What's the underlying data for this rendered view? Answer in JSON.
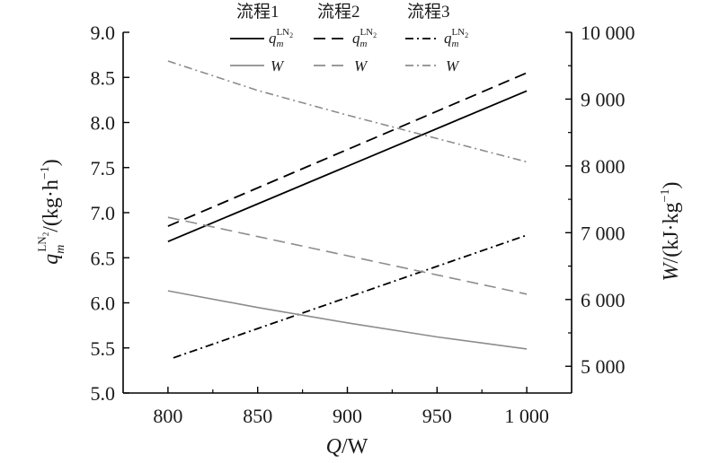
{
  "chart_data": {
    "type": "line",
    "x": [
      800,
      1000
    ],
    "x_ticks": [
      800,
      850,
      900,
      950,
      1000
    ],
    "x_tick_labels": [
      "800",
      "850",
      "900",
      "950",
      "1 000"
    ],
    "xlim": [
      775,
      1025
    ],
    "xlabel": {
      "var": "Q",
      "unit": "/W"
    },
    "y_left": {
      "lim": [
        5.0,
        9.0
      ],
      "ticks": [
        "5.0",
        "5.5",
        "6.0",
        "6.5",
        "7.0",
        "7.5",
        "8.0",
        "8.5",
        "9.0"
      ],
      "label": {
        "var": "q",
        "sub": "m",
        "sup": "LN",
        "sup_sub": "2",
        "unit": "/(kg·h",
        "unit_sup": "−1",
        "close": ")"
      }
    },
    "y_right": {
      "lim": [
        4600,
        10000
      ],
      "ticks": [
        5000,
        6000,
        7000,
        8000,
        9000,
        10000
      ],
      "tick_labels": [
        "5 000",
        "6 000",
        "7 000",
        "8 000",
        "9 000",
        "10 000"
      ],
      "label": {
        "var": "W",
        "unit": "/(kJ·kg",
        "unit_sup": "−1",
        "close": ")"
      }
    },
    "series": [
      {
        "name": "流程1",
        "quantity": "q_m^LN2",
        "axis": "left",
        "x": [
          800,
          1000
        ],
        "values": [
          6.68,
          8.35
        ],
        "color": "#000000",
        "dash": "solid"
      },
      {
        "name": "流程2",
        "quantity": "q_m^LN2",
        "axis": "left",
        "x": [
          800,
          1000
        ],
        "values": [
          6.85,
          8.55
        ],
        "color": "#000000",
        "dash": "dashed"
      },
      {
        "name": "流程3",
        "quantity": "q_m^LN2",
        "axis": "left",
        "x": [
          803,
          1000
        ],
        "values": [
          5.39,
          6.75
        ],
        "color": "#000000",
        "dash": "dashdot"
      },
      {
        "name": "流程1",
        "quantity": "W",
        "axis": "right",
        "x": [
          800,
          850,
          900,
          950,
          1000
        ],
        "values": [
          6130,
          5880,
          5650,
          5440,
          5260
        ],
        "color": "#8c8c8c",
        "dash": "solid"
      },
      {
        "name": "流程2",
        "quantity": "W",
        "axis": "right",
        "x": [
          800,
          1000
        ],
        "values": [
          7230,
          6080
        ],
        "color": "#8c8c8c",
        "dash": "dashed"
      },
      {
        "name": "流程3",
        "quantity": "W",
        "axis": "right",
        "x": [
          800,
          850,
          900,
          950,
          1000
        ],
        "values": [
          9570,
          9130,
          8760,
          8410,
          8060
        ],
        "color": "#8c8c8c",
        "dash": "dashdot"
      }
    ],
    "legend": {
      "placement": "top-center",
      "headers": [
        "流程1",
        "流程2",
        "流程3"
      ],
      "row1_symbol": {
        "var": "q",
        "sub": "m",
        "sup": "LN",
        "sup_sub": "2"
      },
      "row2_symbol": {
        "var": "W"
      }
    },
    "grid": false
  }
}
